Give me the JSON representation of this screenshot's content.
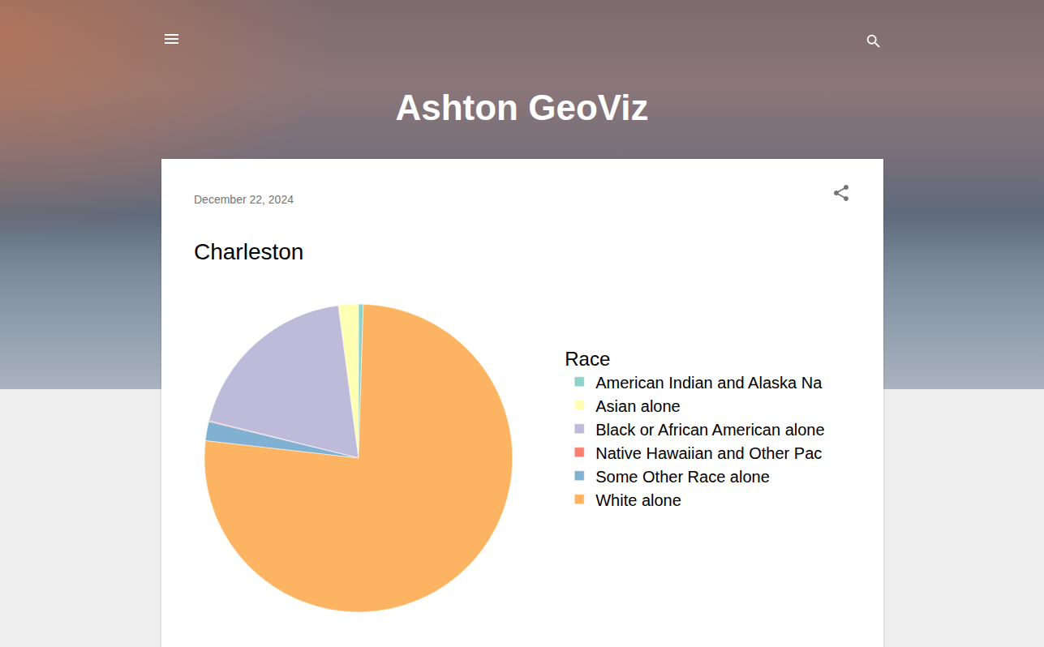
{
  "page": {
    "site_title": "Ashton GeoViz",
    "date": "December 22, 2024"
  },
  "chart_data": {
    "type": "pie",
    "title": "Charleston",
    "legend_title": "Race",
    "categories": [
      "American Indian and Alaska Na",
      "Asian alone",
      "Black or African American alone",
      "Native Hawaiian and Other Pac",
      "Some Other Race alone",
      "White alone"
    ],
    "values": [
      0.5,
      2.1,
      19.0,
      0.1,
      2.0,
      76.3
    ],
    "colors": [
      "#8DD3C7",
      "#FFFFB3",
      "#BEBADA",
      "#FB8072",
      "#80B1D3",
      "#FDB462"
    ],
    "legend": "right",
    "data_labels": false
  }
}
